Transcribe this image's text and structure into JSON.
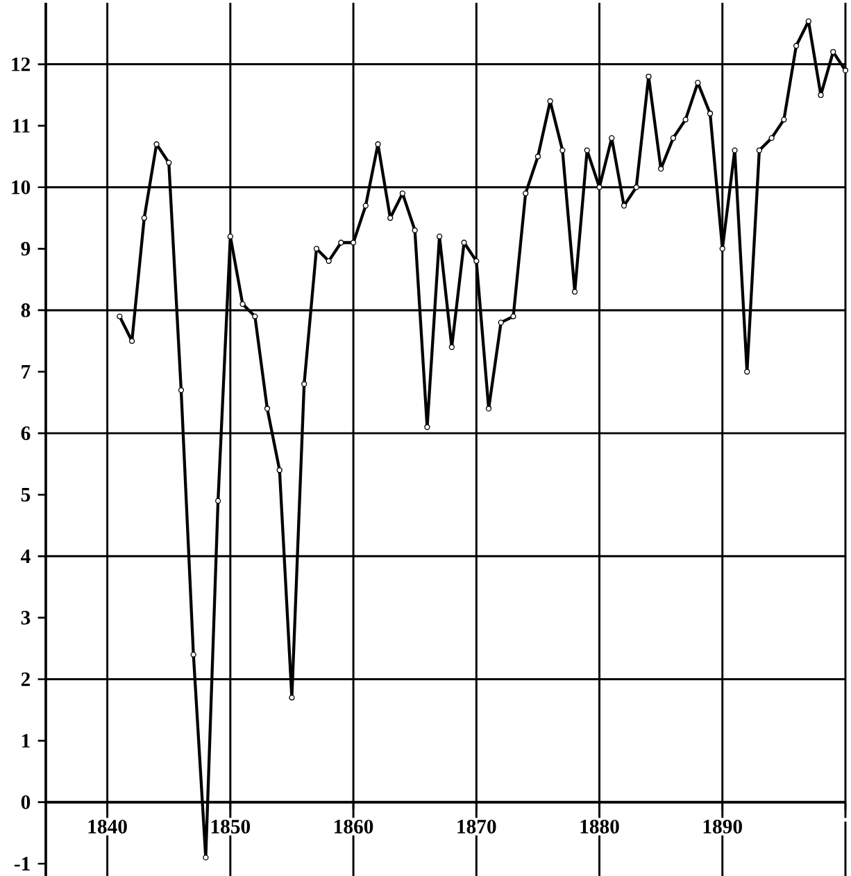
{
  "chart_data": {
    "type": "line",
    "color": "#000000",
    "marker": "circle",
    "line_style": "solid",
    "grid": true,
    "x": [
      1841,
      1842,
      1843,
      1844,
      1845,
      1846,
      1847,
      1848,
      1849,
      1850,
      1851,
      1852,
      1853,
      1854,
      1855,
      1856,
      1857,
      1858,
      1859,
      1860,
      1861,
      1862,
      1863,
      1864,
      1865,
      1866,
      1867,
      1868,
      1869,
      1870,
      1871,
      1872,
      1873,
      1874,
      1875,
      1876,
      1877,
      1878,
      1879,
      1880,
      1881,
      1882,
      1883,
      1884,
      1885,
      1886,
      1887,
      1888,
      1889,
      1890,
      1891,
      1892,
      1893,
      1894,
      1895,
      1896,
      1897,
      1898,
      1899,
      1900
    ],
    "values": [
      7.9,
      7.5,
      9.5,
      10.7,
      10.4,
      6.7,
      2.4,
      -0.9,
      4.9,
      9.2,
      8.1,
      7.9,
      6.4,
      5.4,
      1.7,
      6.8,
      9.0,
      8.8,
      9.1,
      9.1,
      9.7,
      10.7,
      9.5,
      9.9,
      9.3,
      6.1,
      9.2,
      7.4,
      9.1,
      8.8,
      6.4,
      7.8,
      7.9,
      9.9,
      10.5,
      11.4,
      10.6,
      8.3,
      10.6,
      10.0,
      10.8,
      9.7,
      10.0,
      11.8,
      10.3,
      10.8,
      11.1,
      11.7,
      11.2,
      9.0,
      10.6,
      7.0,
      10.6,
      10.8,
      11.1,
      12.3,
      12.7,
      11.5,
      12.2,
      11.9
    ],
    "xlim": [
      1835,
      1900
    ],
    "ylim": [
      -1.2,
      13
    ],
    "xticks": [
      1840,
      1850,
      1860,
      1870,
      1880,
      1890,
      {
        "value": 1900,
        "label": null
      }
    ],
    "yticks": [
      -1,
      0,
      1,
      2,
      3,
      4,
      5,
      6,
      7,
      8,
      9,
      10,
      11,
      12
    ]
  }
}
